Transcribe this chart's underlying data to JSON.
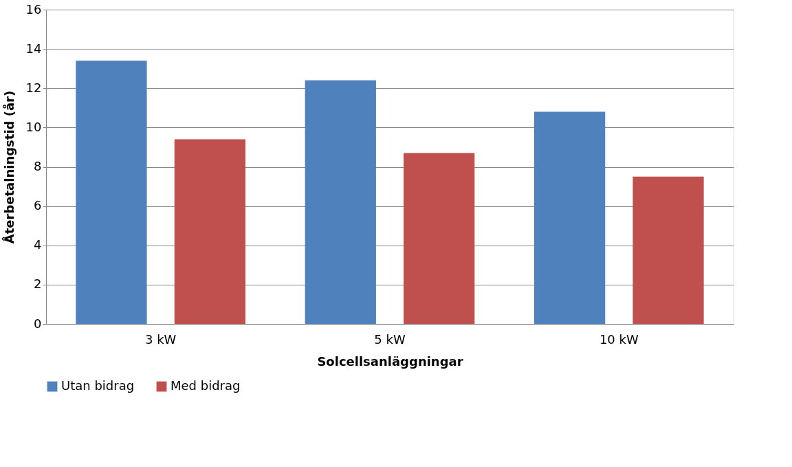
{
  "chart_data": {
    "type": "bar",
    "xlabel": "Solcellsanläggningar",
    "ylabel": "Återbetalningstid (år)",
    "categories": [
      "3 kW",
      "5 kW",
      "10 kW"
    ],
    "series": [
      {
        "name": "Utan bidrag",
        "color": "#4f81bd",
        "values": [
          13.4,
          12.4,
          10.8
        ]
      },
      {
        "name": "Med bidrag",
        "color": "#c0504d",
        "values": [
          9.4,
          8.7,
          7.5
        ]
      }
    ],
    "ylim": [
      0,
      16
    ],
    "yticks": [
      0,
      2,
      4,
      6,
      8,
      10,
      12,
      14,
      16
    ],
    "grid": "y",
    "legend": "bottom"
  }
}
